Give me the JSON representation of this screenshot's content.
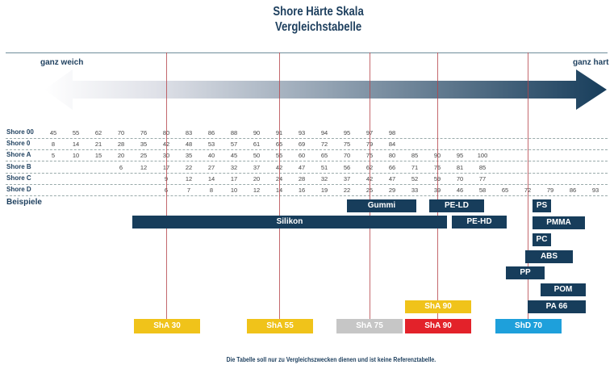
{
  "title": {
    "line1": "Shore Härte Skala",
    "line2": "Vergleichstabelle"
  },
  "scale": {
    "left_label": "ganz weich",
    "right_label": "ganz hart"
  },
  "colors": {
    "navy": "#173d5b",
    "yellow": "#f0c31a",
    "grey": "#c6c6c6",
    "red": "#e3222a",
    "blue": "#1ea0db",
    "line": "#b5434a"
  },
  "table": {
    "rows": [
      {
        "label": "Shore 00",
        "values": [
          "45",
          "55",
          "62",
          "70",
          "76",
          "80",
          "83",
          "86",
          "88",
          "90",
          "91",
          "93",
          "94",
          "95",
          "97",
          "98"
        ]
      },
      {
        "label": "Shore 0",
        "values": [
          "8",
          "14",
          "21",
          "28",
          "35",
          "42",
          "48",
          "53",
          "57",
          "61",
          "65",
          "69",
          "72",
          "75",
          "79",
          "84"
        ]
      },
      {
        "label": "Shore A",
        "values": [
          "5",
          "10",
          "15",
          "20",
          "25",
          "30",
          "35",
          "40",
          "45",
          "50",
          "55",
          "60",
          "65",
          "70",
          "75",
          "80",
          "85",
          "90",
          "95",
          "100"
        ]
      },
      {
        "label": "Shore B",
        "values": [
          "",
          "",
          "",
          "6",
          "12",
          "17",
          "22",
          "27",
          "32",
          "37",
          "42",
          "47",
          "51",
          "56",
          "62",
          "66",
          "71",
          "76",
          "81",
          "85"
        ]
      },
      {
        "label": "Shore C",
        "values": [
          "",
          "",
          "",
          "",
          "",
          "9",
          "12",
          "14",
          "17",
          "20",
          "24",
          "28",
          "32",
          "37",
          "42",
          "47",
          "52",
          "59",
          "70",
          "77"
        ]
      },
      {
        "label": "Shore D",
        "values": [
          "",
          "",
          "",
          "",
          "",
          "6",
          "7",
          "8",
          "10",
          "12",
          "14",
          "16",
          "19",
          "22",
          "25",
          "29",
          "33",
          "39",
          "46",
          "58",
          "65",
          "72",
          "79",
          "86",
          "93"
        ]
      }
    ]
  },
  "examples": {
    "label": "Beispiele",
    "materials": [
      "Gummi",
      "PE-LD",
      "Silikon",
      "PE-HD",
      "PS",
      "PMMA",
      "PC",
      "ABS",
      "PP",
      "POM",
      "PA 66"
    ],
    "references": [
      "ShA 30",
      "ShA 55",
      "ShA 75",
      "ShA 90",
      "ShA 90",
      "ShD 70"
    ]
  },
  "footer": "Die Tabelle soll nur zu Vergleichszwecken dienen und ist keine Referenztabelle."
}
